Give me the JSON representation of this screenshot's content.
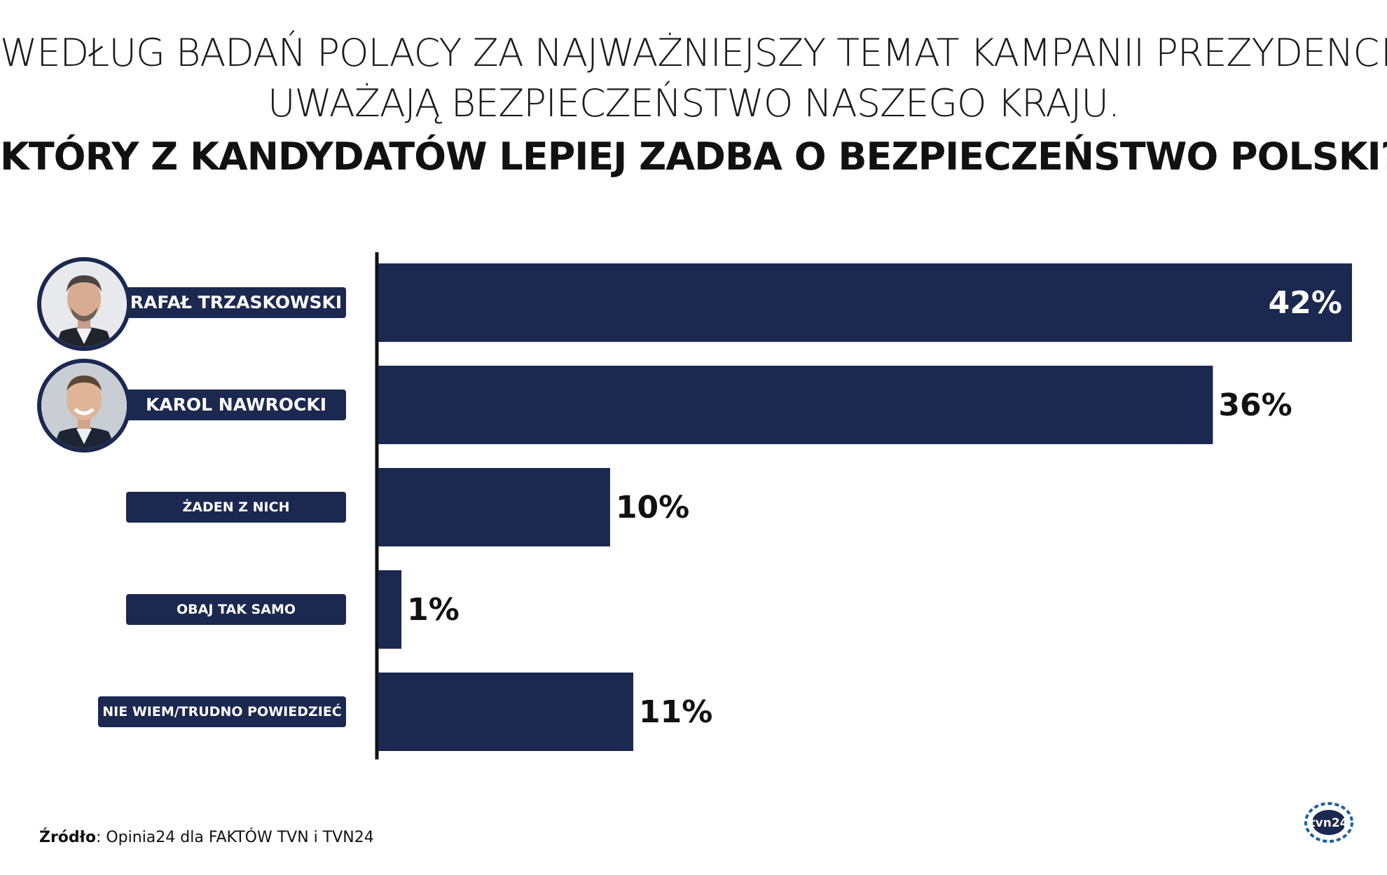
{
  "header": {
    "subtitle_line1": "WEDŁUG BADAŃ POLACY ZA NAJWAŻNIEJSZY TEMAT KAMPANII PREZYDENCKIEJ",
    "subtitle_line2": "UWAŻAJĄ BEZPIECZEŃSTWO NASZEGO KRAJU.",
    "title": "KTÓRY Z KANDYDATÓW LEPIEJ ZADBA O BEZPIECZEŃSTWO POLSKI?"
  },
  "chart_data": {
    "type": "bar",
    "orientation": "horizontal",
    "categories": [
      "RAFAŁ TRZASKOWSKI",
      "KAROL NAWROCKI",
      "ŻADEN Z NICH",
      "OBAJ TAK SAMO",
      "NIE WIEM/TRUDNO POWIEDZIEĆ"
    ],
    "values": [
      42,
      36,
      10,
      1,
      11
    ],
    "value_labels": [
      "42%",
      "36%",
      "10%",
      "1%",
      "11%"
    ],
    "unit": "%",
    "xlim": [
      0,
      42
    ],
    "bar_color": "#1b2850",
    "grid": false,
    "legend": false
  },
  "candidates": [
    {
      "photo": "portrait-trzaskowski"
    },
    {
      "photo": "portrait-nawrocki"
    }
  ],
  "footer": {
    "source_label": "Źródło",
    "source_text": ": Opinia24 dla FAKTÓW TVN i TVN24",
    "logo_text": "tvn24"
  },
  "colors": {
    "navy": "#1b2850",
    "text": "#111111",
    "background": "#ffffff"
  }
}
